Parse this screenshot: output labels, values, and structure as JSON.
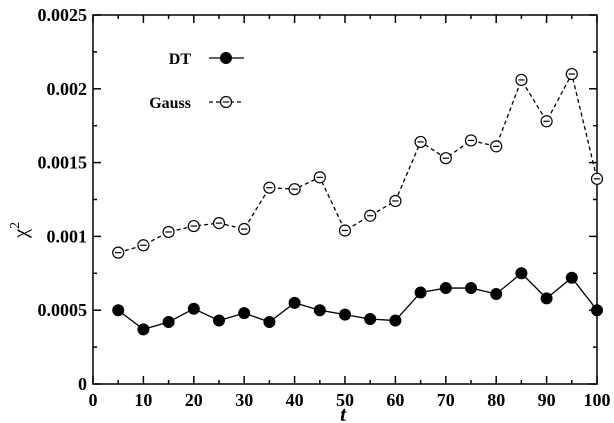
{
  "chart_data": {
    "type": "line",
    "xlabel": "t",
    "ylabel": "χ",
    "ylabel_superscript": "2",
    "xlim": [
      0,
      100
    ],
    "ylim": [
      0,
      0.0025
    ],
    "xticks": [
      0,
      10,
      20,
      30,
      40,
      50,
      60,
      70,
      80,
      90,
      100
    ],
    "xtick_labels": [
      "0",
      "10",
      "20",
      "30",
      "40",
      "50",
      "60",
      "70",
      "80",
      "90",
      "100"
    ],
    "yticks": [
      0,
      0.0005,
      0.001,
      0.0015,
      0.002,
      0.0025
    ],
    "ytick_labels": [
      "0",
      "0.0005",
      "0.001",
      "0.0015",
      "0.002",
      "0.0025"
    ],
    "grid": false,
    "legend_position": "top-left",
    "series": [
      {
        "name": "DT",
        "style": "solid line, filled circles",
        "color": "#000000",
        "x": [
          5,
          10,
          15,
          20,
          25,
          30,
          35,
          40,
          45,
          50,
          55,
          60,
          65,
          70,
          75,
          80,
          85,
          90,
          95,
          100
        ],
        "y": [
          0.0005,
          0.00037,
          0.00042,
          0.00051,
          0.00043,
          0.00048,
          0.00042,
          0.00055,
          0.0005,
          0.00047,
          0.00044,
          0.00043,
          0.00062,
          0.00065,
          0.00065,
          0.00061,
          0.00075,
          0.00058,
          0.00072,
          0.0005
        ]
      },
      {
        "name": "Gauss",
        "style": "dashed line, open circles with bar",
        "color": "#000000",
        "x": [
          5,
          10,
          15,
          20,
          25,
          30,
          35,
          40,
          45,
          50,
          55,
          60,
          65,
          70,
          75,
          80,
          85,
          90,
          95,
          100
        ],
        "y": [
          0.00089,
          0.00094,
          0.00103,
          0.00107,
          0.00109,
          0.00105,
          0.00133,
          0.00132,
          0.0014,
          0.00104,
          0.00114,
          0.00124,
          0.00164,
          0.00153,
          0.00165,
          0.00161,
          0.00206,
          0.00178,
          0.0021,
          0.00139
        ]
      }
    ]
  }
}
